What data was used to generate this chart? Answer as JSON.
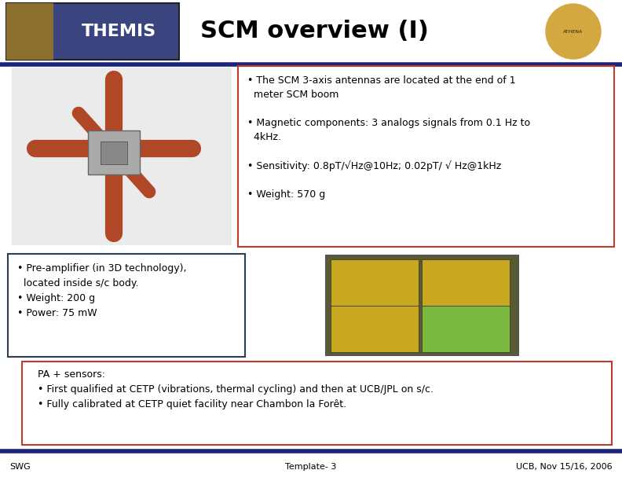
{
  "title": "SCM overview (I)",
  "title_fontsize": 22,
  "bg_color": "#ffffff",
  "header_bar_color": "#1a237e",
  "footer_bar_color": "#1a237e",
  "box1_text": "• The SCM 3-axis antennas are located at the end of 1\n  meter SCM boom\n\n• Magnetic components: 3 analogs signals from 0.1 Hz to\n  4kHz.\n\n• Sensitivity: 0.8pT/√Hz@10Hz; 0.02pT/ √ Hz@1kHz\n\n• Weight: 570 g",
  "box1_border_color": "#c0392b",
  "box2_text": "• Pre-amplifier (in 3D technology),\n  located inside s/c body.\n• Weight: 200 g\n• Power: 75 mW",
  "box2_border_color": "#2c3e50",
  "box3_text": "  PA + sensors:\n  • First qualified at CETP (vibrations, thermal cycling) and then at UCB/JPL on s/c.\n  • Fully calibrated at CETP quiet facility near Chambon la Forêt.",
  "box3_border_color": "#c0392b",
  "footer_left": "SWG",
  "footer_center": "Template- 3",
  "footer_right": "UCB, Nov 15/16, 2006",
  "footer_fontsize": 8,
  "text_fontsize": 9
}
